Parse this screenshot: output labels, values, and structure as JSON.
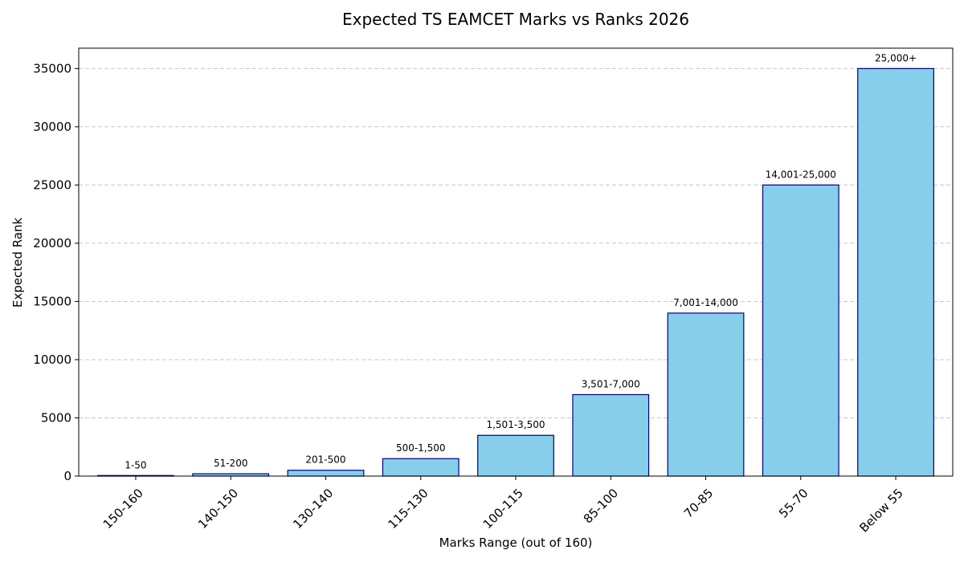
{
  "chart_data": {
    "type": "bar",
    "title": "Expected TS EAMCET Marks vs Ranks 2026",
    "xlabel": "Marks Range (out of 160)",
    "ylabel": "Expected Rank",
    "categories": [
      "150-160",
      "140-150",
      "130-140",
      "115-130",
      "100-115",
      "85-100",
      "70-85",
      "55-70",
      "Below 55"
    ],
    "values": [
      50,
      200,
      500,
      1500,
      3500,
      7000,
      14000,
      25000,
      35000
    ],
    "data_labels": [
      "1-50",
      "51-200",
      "201-500",
      "500-1,500",
      "1,501-3,500",
      "3,501-7,000",
      "7,001-14,000",
      "14,001-25,000",
      "25,000+"
    ],
    "yticks": [
      "0",
      "5000",
      "10000",
      "15000",
      "20000",
      "25000",
      "30000",
      "35000"
    ],
    "ylim": [
      0,
      36750
    ],
    "grid": "y-dashed",
    "colors": {
      "bar_fill": "#87CEEB",
      "bar_edge": "#000080"
    }
  }
}
